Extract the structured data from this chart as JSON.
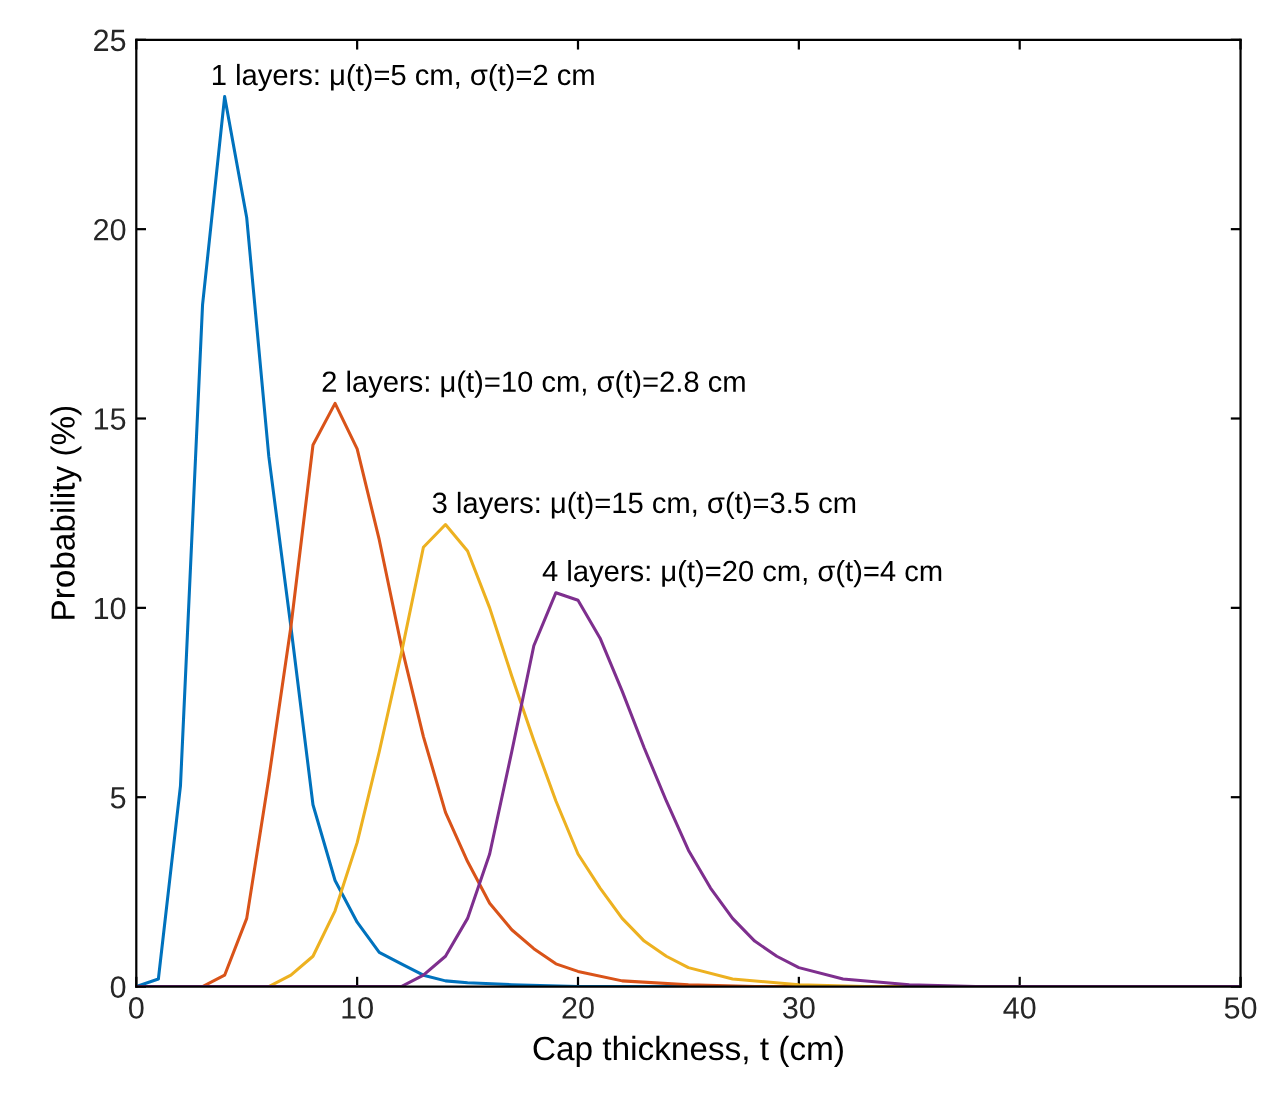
{
  "chart_data": {
    "type": "line",
    "xlabel": "Cap thickness, t (cm)",
    "ylabel": "Probability (%)",
    "xlim": [
      0,
      50
    ],
    "ylim": [
      0,
      25
    ],
    "xticks": [
      0,
      10,
      20,
      30,
      40,
      50
    ],
    "yticks": [
      0,
      5,
      10,
      15,
      20,
      25
    ],
    "grid": false,
    "series": [
      {
        "color": "#0072bd",
        "x": [
          0,
          1,
          2,
          3,
          4,
          5,
          6,
          7,
          8,
          9,
          10,
          11,
          12,
          13,
          14,
          15,
          17,
          20,
          50
        ],
        "values": [
          0,
          0.2,
          5.3,
          18,
          23.5,
          20.3,
          14,
          9.5,
          4.8,
          2.8,
          1.7,
          0.9,
          0.6,
          0.3,
          0.15,
          0.1,
          0.05,
          0,
          0
        ]
      },
      {
        "color": "#d95319",
        "x": [
          0,
          3,
          4,
          5,
          6,
          7,
          8,
          9,
          10,
          11,
          12,
          13,
          14,
          15,
          16,
          17,
          18,
          19,
          20,
          22,
          25,
          28,
          50
        ],
        "values": [
          0,
          0,
          0.3,
          1.8,
          5.5,
          9.5,
          14.3,
          15.4,
          14.2,
          11.8,
          9,
          6.6,
          4.6,
          3.3,
          2.2,
          1.5,
          1.0,
          0.6,
          0.4,
          0.15,
          0.05,
          0,
          0
        ]
      },
      {
        "color": "#edb120",
        "x": [
          0,
          6,
          7,
          8,
          9,
          10,
          11,
          12,
          13,
          14,
          15,
          16,
          17,
          18,
          19,
          20,
          21,
          22,
          23,
          24,
          25,
          27,
          30,
          33,
          50
        ],
        "values": [
          0,
          0,
          0.3,
          0.8,
          2.0,
          3.8,
          6.2,
          8.8,
          11.6,
          12.2,
          11.5,
          10.0,
          8.2,
          6.5,
          4.9,
          3.5,
          2.6,
          1.8,
          1.2,
          0.8,
          0.5,
          0.2,
          0.05,
          0,
          0
        ]
      },
      {
        "color": "#7e2f8e",
        "x": [
          0,
          12,
          13,
          14,
          15,
          16,
          17,
          18,
          19,
          20,
          21,
          22,
          23,
          24,
          25,
          26,
          27,
          28,
          29,
          30,
          32,
          35,
          38,
          50
        ],
        "values": [
          0,
          0,
          0.3,
          0.8,
          1.8,
          3.5,
          6.2,
          9.0,
          10.4,
          10.2,
          9.2,
          7.8,
          6.3,
          4.9,
          3.6,
          2.6,
          1.8,
          1.2,
          0.8,
          0.5,
          0.2,
          0.05,
          0,
          0
        ]
      }
    ],
    "annotations": [
      {
        "text": "1 layers: μ(t)=5 cm, σ(t)=2 cm",
        "x": 4,
        "y": 23.5
      },
      {
        "text": "2 layers: μ(t)=10 cm, σ(t)=2.8 cm",
        "x": 9,
        "y": 15.4
      },
      {
        "text": "3 layers: μ(t)=15 cm, σ(t)=3.5 cm",
        "x": 14,
        "y": 12.2
      },
      {
        "text": "4 layers: μ(t)=20 cm, σ(t)=4 cm",
        "x": 19,
        "y": 10.4
      }
    ]
  }
}
